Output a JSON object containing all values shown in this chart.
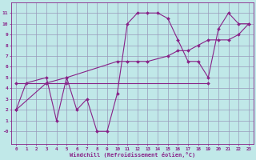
{
  "background_color": "#c0e8e8",
  "grid_color": "#9999bb",
  "line_color": "#882288",
  "xlabel": "Windchill (Refroidissement éolien,°C)",
  "xlim": [
    -0.5,
    23.5
  ],
  "ylim": [
    -1.2,
    12
  ],
  "xticks": [
    0,
    1,
    2,
    3,
    4,
    5,
    6,
    7,
    8,
    9,
    10,
    11,
    12,
    13,
    14,
    15,
    16,
    17,
    18,
    19,
    20,
    21,
    22,
    23
  ],
  "yticks": [
    0,
    1,
    2,
    3,
    4,
    5,
    6,
    7,
    8,
    9,
    10,
    11
  ],
  "ytick_labels": [
    "-0",
    "1",
    "2",
    "3",
    "4",
    "5",
    "6",
    "7",
    "8",
    "9",
    "10",
    "11"
  ],
  "series1_x": [
    0,
    3,
    5,
    19
  ],
  "series1_y": [
    4.5,
    4.5,
    4.5,
    4.5
  ],
  "series2_x": [
    0,
    3,
    5,
    10,
    11,
    12,
    13,
    15,
    16,
    17,
    18,
    19,
    20,
    21,
    22,
    23
  ],
  "series2_y": [
    2.0,
    4.5,
    5.0,
    6.5,
    6.5,
    6.5,
    6.5,
    7.0,
    7.5,
    7.5,
    8.0,
    8.5,
    8.5,
    8.5,
    9.0,
    10.0
  ],
  "series3_x": [
    0,
    1,
    3,
    4,
    5,
    6,
    7,
    8,
    9,
    10,
    11,
    12,
    13,
    14,
    15,
    16,
    17,
    18,
    19,
    20,
    21,
    22,
    23
  ],
  "series3_y": [
    2.0,
    4.5,
    5.0,
    1.0,
    5.0,
    2.0,
    3.0,
    0.0,
    0.0,
    3.5,
    10.0,
    11.0,
    11.0,
    11.0,
    10.5,
    8.5,
    6.5,
    6.5,
    5.0,
    9.5,
    11.0,
    10.0,
    10.0
  ]
}
